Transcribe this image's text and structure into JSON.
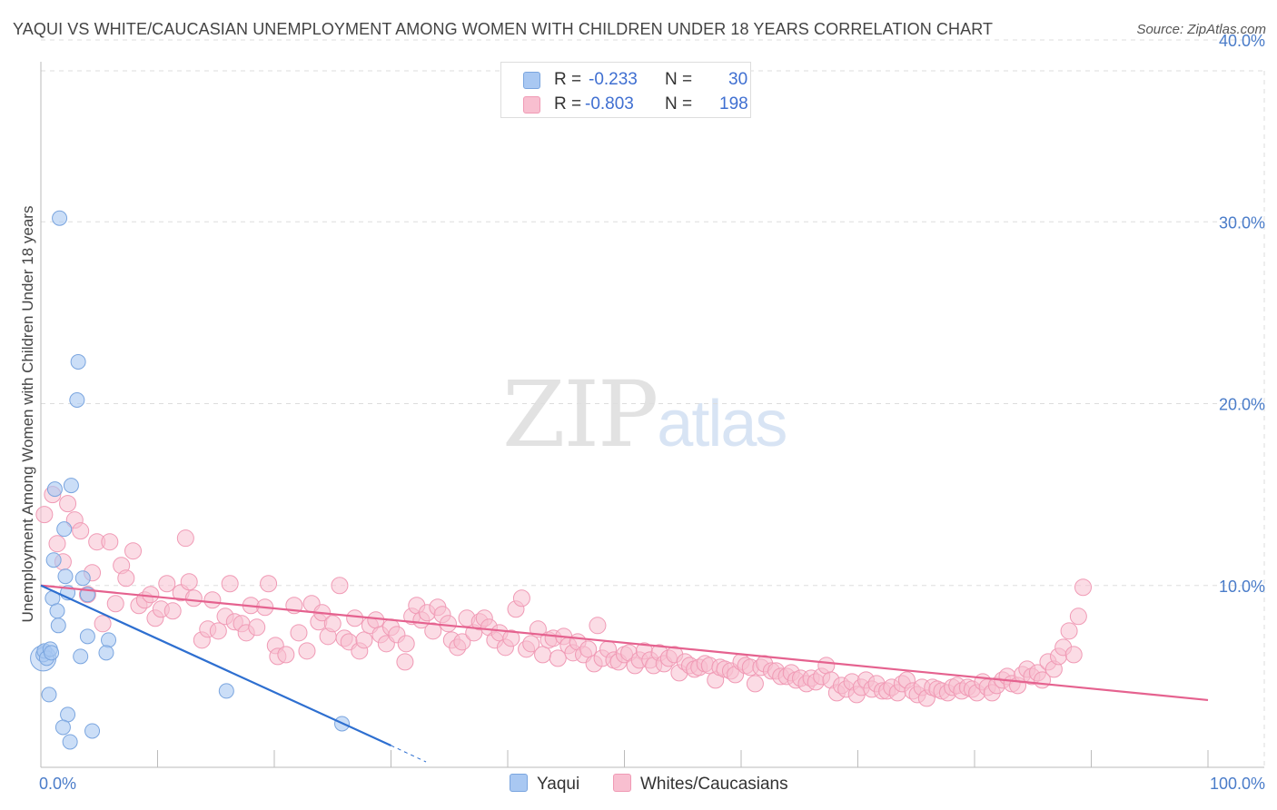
{
  "title": "YAQUI VS WHITE/CAUCASIAN UNEMPLOYMENT AMONG WOMEN WITH CHILDREN UNDER 18 YEARS CORRELATION CHART",
  "source": "Source: ZipAtlas.com",
  "watermark": {
    "zip": "ZIP",
    "atlas": "atlas"
  },
  "legend": {
    "rows": [
      {
        "r_label": "R =",
        "r_value": "-0.233",
        "n_label": "N =",
        "n_value": "30"
      },
      {
        "r_label": "R =",
        "r_value": "-0.803",
        "n_label": "N =",
        "n_value": "198"
      }
    ]
  },
  "bottom_legend": {
    "yaqui": "Yaqui",
    "white": "Whites/Caucasians"
  },
  "colors": {
    "yaqui_fill": "#a9c8f2",
    "yaqui_stroke": "#7aa5df",
    "yaqui_line": "#2e6fd0",
    "white_fill": "#f8bfd0",
    "white_stroke": "#f09ab5",
    "white_line": "#e5628f",
    "tick_text": "#4a7cc9",
    "grid": "#dddddd"
  },
  "chart_data": {
    "type": "scatter",
    "title": "YAQUI VS WHITE/CAUCASIAN UNEMPLOYMENT AMONG WOMEN WITH CHILDREN UNDER 18 YEARS CORRELATION CHART",
    "xlabel": "",
    "ylabel": "Unemployment Among Women with Children Under 18 years",
    "xlim": [
      0,
      100
    ],
    "ylim": [
      0,
      40
    ],
    "x_tick_labels": [
      "0.0%",
      "100.0%"
    ],
    "y_ticks": [
      {
        "value": 10,
        "label": "10.0%"
      },
      {
        "value": 20,
        "label": "20.0%"
      },
      {
        "value": 30,
        "label": "30.0%"
      },
      {
        "value": 40,
        "label": "40.0%"
      }
    ],
    "series": [
      {
        "name": "Yaqui",
        "r": -0.233,
        "n": 30,
        "trend": {
          "x": [
            0,
            30,
            33
          ],
          "y": [
            10,
            1.2,
            0.3
          ]
        },
        "points": [
          [
            0.2,
            6.2
          ],
          [
            0.3,
            6.4
          ],
          [
            0.5,
            6.0
          ],
          [
            0.8,
            6.5
          ],
          [
            0.9,
            6.3
          ],
          [
            0.7,
            4.0
          ],
          [
            1.6,
            30.2
          ],
          [
            3.2,
            22.3
          ],
          [
            3.1,
            20.2
          ],
          [
            1.2,
            15.3
          ],
          [
            2.6,
            15.5
          ],
          [
            2.0,
            13.1
          ],
          [
            1.1,
            11.4
          ],
          [
            2.1,
            10.5
          ],
          [
            3.6,
            10.4
          ],
          [
            2.3,
            9.6
          ],
          [
            4.0,
            9.5
          ],
          [
            1.0,
            9.3
          ],
          [
            1.4,
            8.6
          ],
          [
            1.5,
            7.8
          ],
          [
            4.0,
            7.2
          ],
          [
            5.8,
            7.0
          ],
          [
            3.4,
            6.1
          ],
          [
            5.6,
            6.3
          ],
          [
            15.9,
            4.2
          ],
          [
            2.3,
            2.9
          ],
          [
            1.9,
            2.2
          ],
          [
            4.4,
            2.0
          ],
          [
            2.5,
            1.4
          ],
          [
            25.8,
            2.4
          ]
        ]
      },
      {
        "name": "Whites/Caucasians",
        "r": -0.803,
        "n": 198,
        "trend": {
          "x": [
            0,
            100
          ],
          "y": [
            10,
            3.7
          ]
        },
        "points": [
          [
            0.3,
            13.9
          ],
          [
            1.0,
            15.0
          ],
          [
            1.4,
            12.3
          ],
          [
            1.9,
            11.3
          ],
          [
            2.3,
            14.5
          ],
          [
            2.9,
            13.6
          ],
          [
            3.4,
            13.0
          ],
          [
            4.4,
            10.7
          ],
          [
            4.0,
            9.5
          ],
          [
            4.8,
            12.4
          ],
          [
            5.3,
            7.9
          ],
          [
            5.9,
            12.4
          ],
          [
            6.4,
            9.0
          ],
          [
            6.9,
            11.1
          ],
          [
            7.3,
            10.4
          ],
          [
            7.9,
            11.9
          ],
          [
            8.4,
            8.9
          ],
          [
            8.9,
            9.2
          ],
          [
            9.4,
            9.5
          ],
          [
            9.8,
            8.2
          ],
          [
            10.3,
            8.7
          ],
          [
            10.8,
            10.1
          ],
          [
            11.3,
            8.6
          ],
          [
            12.0,
            9.6
          ],
          [
            12.4,
            12.6
          ],
          [
            12.7,
            10.2
          ],
          [
            13.1,
            9.3
          ],
          [
            13.8,
            7.0
          ],
          [
            14.3,
            7.6
          ],
          [
            14.7,
            9.2
          ],
          [
            15.2,
            7.5
          ],
          [
            15.8,
            8.3
          ],
          [
            16.2,
            10.1
          ],
          [
            16.6,
            8.0
          ],
          [
            17.2,
            7.9
          ],
          [
            17.6,
            7.4
          ],
          [
            18.0,
            8.9
          ],
          [
            18.5,
            7.7
          ],
          [
            19.2,
            8.8
          ],
          [
            19.5,
            10.1
          ],
          [
            20.1,
            6.7
          ],
          [
            20.3,
            6.1
          ],
          [
            21.0,
            6.2
          ],
          [
            21.7,
            8.9
          ],
          [
            22.1,
            7.4
          ],
          [
            22.8,
            6.4
          ],
          [
            23.2,
            9.0
          ],
          [
            23.8,
            8.0
          ],
          [
            24.1,
            8.5
          ],
          [
            24.6,
            7.2
          ],
          [
            25.0,
            7.9
          ],
          [
            25.6,
            10.0
          ],
          [
            26.0,
            7.1
          ],
          [
            26.4,
            6.9
          ],
          [
            26.9,
            8.2
          ],
          [
            27.3,
            6.4
          ],
          [
            27.7,
            7.0
          ],
          [
            28.2,
            7.8
          ],
          [
            28.7,
            8.1
          ],
          [
            29.1,
            7.3
          ],
          [
            29.6,
            6.8
          ],
          [
            30.0,
            7.7
          ],
          [
            30.5,
            7.3
          ],
          [
            31.2,
            5.8
          ],
          [
            31.3,
            6.8
          ],
          [
            31.8,
            8.3
          ],
          [
            32.2,
            8.9
          ],
          [
            32.6,
            8.1
          ],
          [
            33.1,
            8.5
          ],
          [
            33.6,
            7.5
          ],
          [
            34.0,
            8.8
          ],
          [
            34.4,
            8.4
          ],
          [
            34.9,
            7.9
          ],
          [
            35.2,
            7.0
          ],
          [
            35.7,
            6.6
          ],
          [
            36.1,
            6.9
          ],
          [
            36.5,
            8.2
          ],
          [
            37.1,
            7.4
          ],
          [
            37.6,
            8.0
          ],
          [
            38.0,
            8.2
          ],
          [
            38.4,
            7.7
          ],
          [
            38.9,
            7.0
          ],
          [
            39.3,
            7.4
          ],
          [
            39.8,
            6.6
          ],
          [
            40.3,
            7.1
          ],
          [
            40.7,
            8.7
          ],
          [
            41.2,
            9.3
          ],
          [
            41.6,
            6.5
          ],
          [
            42.0,
            6.8
          ],
          [
            42.6,
            7.6
          ],
          [
            43.0,
            6.2
          ],
          [
            43.5,
            7.0
          ],
          [
            43.9,
            7.1
          ],
          [
            44.3,
            6.0
          ],
          [
            44.8,
            7.2
          ],
          [
            45.2,
            6.7
          ],
          [
            45.6,
            6.3
          ],
          [
            46.0,
            6.9
          ],
          [
            46.5,
            6.2
          ],
          [
            46.9,
            6.5
          ],
          [
            47.4,
            5.7
          ],
          [
            47.7,
            7.8
          ],
          [
            48.1,
            6.0
          ],
          [
            48.6,
            6.5
          ],
          [
            49.1,
            5.9
          ],
          [
            49.5,
            5.8
          ],
          [
            50.0,
            6.2
          ],
          [
            50.4,
            6.3
          ],
          [
            50.9,
            5.6
          ],
          [
            51.3,
            5.9
          ],
          [
            51.7,
            6.4
          ],
          [
            52.2,
            5.9
          ],
          [
            52.5,
            5.6
          ],
          [
            53.0,
            6.3
          ],
          [
            53.4,
            5.7
          ],
          [
            53.8,
            6.0
          ],
          [
            54.3,
            6.2
          ],
          [
            54.7,
            5.2
          ],
          [
            55.2,
            5.8
          ],
          [
            55.6,
            5.6
          ],
          [
            56.0,
            5.4
          ],
          [
            56.4,
            5.5
          ],
          [
            56.9,
            5.7
          ],
          [
            57.3,
            5.6
          ],
          [
            57.8,
            4.8
          ],
          [
            58.2,
            5.5
          ],
          [
            58.6,
            5.4
          ],
          [
            59.1,
            5.3
          ],
          [
            59.5,
            5.1
          ],
          [
            60.0,
            5.8
          ],
          [
            60.4,
            5.6
          ],
          [
            60.8,
            5.5
          ],
          [
            61.2,
            4.6
          ],
          [
            61.7,
            5.5
          ],
          [
            62.0,
            5.7
          ],
          [
            62.6,
            5.3
          ],
          [
            63.0,
            5.3
          ],
          [
            63.4,
            5.0
          ],
          [
            63.9,
            5.0
          ],
          [
            64.3,
            5.2
          ],
          [
            64.7,
            4.8
          ],
          [
            65.1,
            4.9
          ],
          [
            65.6,
            4.6
          ],
          [
            66.0,
            4.9
          ],
          [
            66.4,
            4.7
          ],
          [
            66.9,
            5.0
          ],
          [
            67.3,
            5.6
          ],
          [
            67.7,
            4.8
          ],
          [
            68.2,
            4.1
          ],
          [
            68.6,
            4.5
          ],
          [
            69.0,
            4.3
          ],
          [
            69.5,
            4.7
          ],
          [
            69.9,
            4.0
          ],
          [
            70.3,
            4.4
          ],
          [
            70.7,
            4.8
          ],
          [
            71.2,
            4.3
          ],
          [
            71.6,
            4.6
          ],
          [
            72.1,
            4.2
          ],
          [
            72.5,
            4.2
          ],
          [
            72.9,
            4.4
          ],
          [
            73.4,
            4.1
          ],
          [
            73.8,
            4.6
          ],
          [
            74.2,
            4.8
          ],
          [
            74.7,
            4.2
          ],
          [
            75.1,
            4.0
          ],
          [
            75.5,
            4.4
          ],
          [
            75.9,
            3.8
          ],
          [
            76.4,
            4.4
          ],
          [
            76.8,
            4.3
          ],
          [
            77.2,
            4.2
          ],
          [
            77.7,
            4.1
          ],
          [
            78.1,
            4.4
          ],
          [
            78.5,
            4.5
          ],
          [
            78.9,
            4.2
          ],
          [
            79.4,
            4.4
          ],
          [
            79.8,
            4.3
          ],
          [
            80.2,
            4.1
          ],
          [
            80.7,
            4.7
          ],
          [
            81.1,
            4.4
          ],
          [
            81.5,
            4.1
          ],
          [
            81.9,
            4.5
          ],
          [
            82.4,
            4.8
          ],
          [
            82.8,
            5.0
          ],
          [
            83.2,
            4.6
          ],
          [
            83.7,
            4.5
          ],
          [
            84.1,
            5.1
          ],
          [
            84.5,
            5.4
          ],
          [
            84.9,
            5.0
          ],
          [
            85.4,
            5.2
          ],
          [
            85.8,
            4.8
          ],
          [
            86.3,
            5.8
          ],
          [
            86.8,
            5.4
          ],
          [
            87.2,
            6.1
          ],
          [
            87.6,
            6.6
          ],
          [
            88.1,
            7.5
          ],
          [
            88.5,
            6.2
          ],
          [
            88.9,
            8.3
          ],
          [
            89.3,
            9.9
          ]
        ]
      }
    ]
  }
}
